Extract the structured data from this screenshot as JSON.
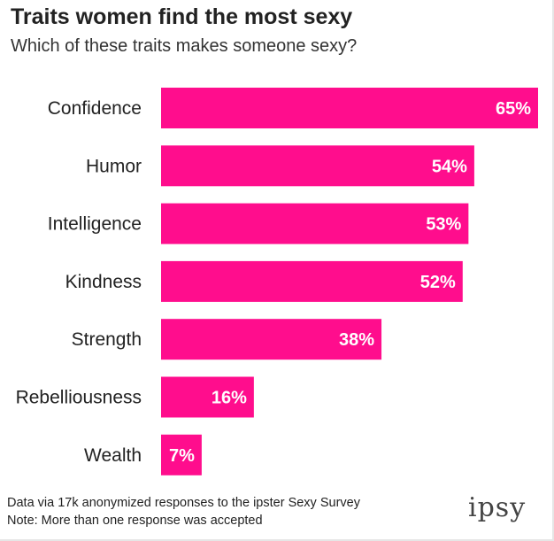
{
  "title": "Traits women find the most sexy",
  "subtitle": "Which of these traits makes someone sexy?",
  "chart_data": {
    "type": "bar",
    "orientation": "horizontal",
    "categories": [
      "Confidence",
      "Humor",
      "Intelligence",
      "Kindness",
      "Strength",
      "Rebelliousness",
      "Wealth"
    ],
    "values": [
      65,
      54,
      53,
      52,
      38,
      16,
      7
    ],
    "value_labels": [
      "65%",
      "54%",
      "53%",
      "52%",
      "38%",
      "16%",
      "7%"
    ],
    "xlim": [
      0,
      65
    ],
    "bar_color": "#ff0d8d",
    "grid": false,
    "legend": "none"
  },
  "footnotes": [
    "Data via 17k anonymized responses to the ipster Sexy Survey",
    "Note: More than one response was accepted"
  ],
  "logo": "ipsy"
}
